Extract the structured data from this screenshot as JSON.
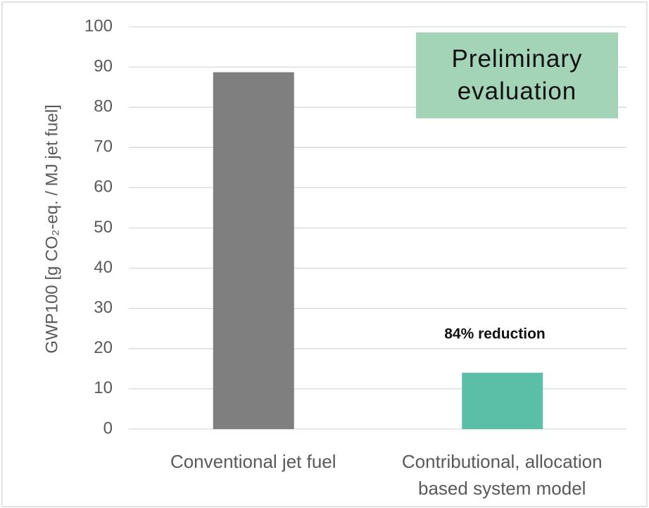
{
  "chart_data": {
    "type": "bar",
    "y_label": "GWP100 [g CO₂-eq. / MJ jet fuel]",
    "categories": [
      "Conventional jet fuel",
      "Contributional, allocation based system model"
    ],
    "values": [
      88.7,
      14
    ],
    "colors": [
      "#7f7f7f",
      "#5bbfa8"
    ],
    "ylim": [
      0,
      100
    ],
    "yticks": [
      0,
      10,
      20,
      30,
      40,
      50,
      60,
      70,
      80,
      90,
      100
    ],
    "grid": true,
    "annotation": "84% reduction",
    "note_box": {
      "text": "Preliminary evaluation",
      "color": "#a3d4b7"
    }
  }
}
